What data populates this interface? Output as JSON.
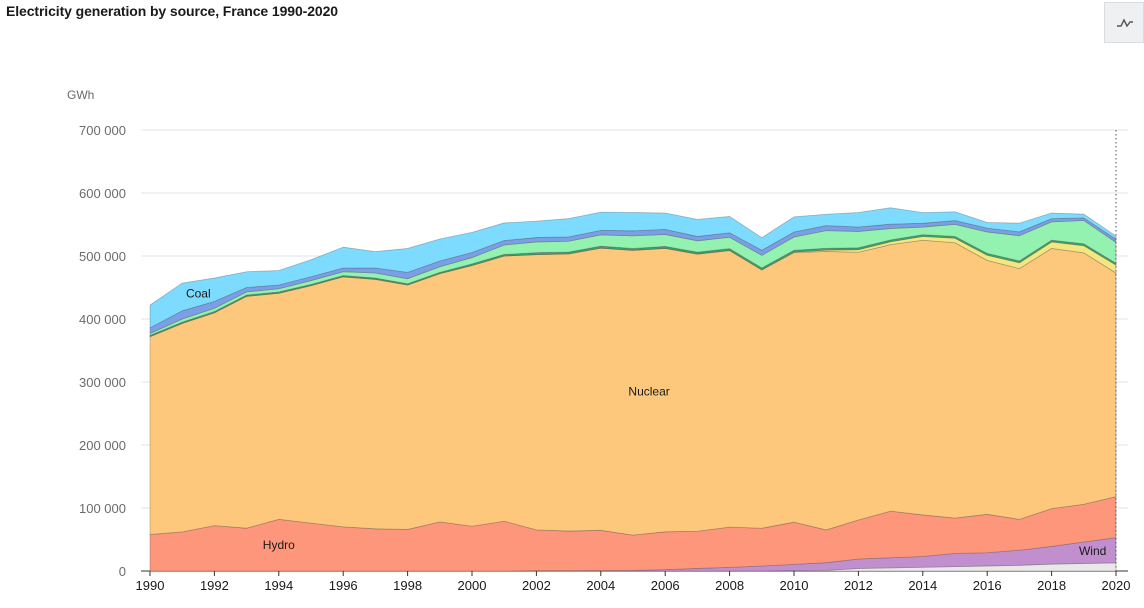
{
  "page": {
    "title": "Electricity generation by source, France 1990-2020"
  },
  "toggle_icon": "line-chart-icon",
  "chart_data": {
    "type": "area",
    "stacked": true,
    "title": "Electricity generation by source, France 1990-2020",
    "ylabel": "GWh",
    "ylim": [
      0,
      700000
    ],
    "yticks": [
      0,
      100000,
      200000,
      300000,
      400000,
      500000,
      600000,
      700000
    ],
    "ytick_labels": [
      "0",
      "100 000",
      "200 000",
      "300 000",
      "400 000",
      "500 000",
      "600 000",
      "700 000"
    ],
    "xlim": [
      1990,
      2020
    ],
    "xticks": [
      1990,
      1992,
      1994,
      1996,
      1998,
      2000,
      2002,
      2004,
      2006,
      2008,
      2010,
      2012,
      2014,
      2016,
      2018,
      2020
    ],
    "xtick_labels": [
      "1990",
      "1992",
      "1994",
      "1996",
      "1998",
      "2000",
      "2002",
      "2004",
      "2006",
      "2008",
      "2010",
      "2012",
      "2014",
      "2016",
      "2018",
      "2020"
    ],
    "grid": true,
    "x": [
      1990,
      1991,
      1992,
      1993,
      1994,
      1995,
      1996,
      1997,
      1998,
      1999,
      2000,
      2001,
      2002,
      2003,
      2004,
      2005,
      2006,
      2007,
      2008,
      2009,
      2010,
      2011,
      2012,
      2013,
      2014,
      2015,
      2016,
      2017,
      2018,
      2019,
      2020
    ],
    "series": [
      {
        "key": "s_other",
        "color": "#e8e8e8",
        "values": [
          0,
          0,
          0,
          0,
          0,
          0,
          0,
          0,
          0,
          0,
          0,
          0,
          0,
          0,
          0,
          0,
          0,
          0,
          0,
          0,
          500,
          1000,
          4000,
          5000,
          6000,
          7000,
          8000,
          9000,
          11000,
          12000,
          13000
        ]
      },
      {
        "name": "Wind",
        "color": "#c18fce",
        "values": [
          0,
          0,
          0,
          0,
          0,
          0,
          0,
          0,
          0,
          0,
          0,
          0,
          300,
          400,
          600,
          1000,
          2200,
          4100,
          5700,
          7900,
          10000,
          12200,
          15000,
          16000,
          17000,
          21000,
          21000,
          24000,
          28000,
          34000,
          40000
        ]
      },
      {
        "name": "Hydro",
        "color": "#fd967a",
        "values": [
          58000,
          62000,
          72000,
          68000,
          82000,
          76000,
          70000,
          67000,
          66000,
          78000,
          71000,
          79000,
          65000,
          63000,
          64000,
          56000,
          60000,
          59000,
          64000,
          60000,
          67000,
          52000,
          62000,
          74000,
          66000,
          56000,
          61000,
          49000,
          60000,
          60000,
          65000
        ]
      },
      {
        "name": "Nuclear",
        "color": "#fdc87c",
        "values": [
          314000,
          331000,
          338000,
          368000,
          359000,
          377000,
          397000,
          396000,
          388000,
          394000,
          414000,
          421000,
          437000,
          440000,
          448000,
          452000,
          450000,
          440000,
          439000,
          410000,
          428000,
          442000,
          425000,
          423000,
          436000,
          437000,
          403000,
          398000,
          413000,
          399000,
          355000
        ]
      },
      {
        "key": "s_solar",
        "color": "#f5e67f",
        "values": [
          0,
          0,
          0,
          0,
          0,
          0,
          0,
          0,
          0,
          0,
          0,
          0,
          0,
          0,
          0,
          0,
          0,
          0,
          100,
          200,
          600,
          2100,
          4000,
          4600,
          5900,
          7200,
          8200,
          9200,
          10200,
          11400,
          12600
        ]
      },
      {
        "key": "s_bio",
        "color": "#3aa86b",
        "values": [
          2000,
          2000,
          2000,
          2000,
          2000,
          2000,
          2000,
          2000,
          2000,
          2000,
          2500,
          2500,
          3000,
          3000,
          3000,
          3000,
          3000,
          3000,
          3000,
          3000,
          3000,
          3000,
          3000,
          3000,
          3000,
          3000,
          3000,
          3000,
          3000,
          3000,
          3000
        ]
      },
      {
        "key": "s_gas",
        "color": "#94f2b0",
        "values": [
          3000,
          5000,
          5000,
          5000,
          5000,
          6000,
          6000,
          8000,
          8000,
          9000,
          10000,
          15000,
          17000,
          17000,
          18000,
          20000,
          19000,
          18000,
          18000,
          20000,
          21000,
          28000,
          26000,
          18000,
          12000,
          19000,
          34000,
          40000,
          29000,
          37000,
          33000
        ]
      },
      {
        "key": "s_oil",
        "color": "#7b9fe6",
        "values": [
          9000,
          13000,
          11000,
          7000,
          6000,
          6000,
          6000,
          8000,
          10000,
          9000,
          8000,
          7000,
          7000,
          7000,
          7000,
          8000,
          8000,
          7000,
          7000,
          8000,
          8000,
          8000,
          7000,
          7000,
          6000,
          6000,
          6000,
          6000,
          5000,
          4000,
          5000
        ]
      },
      {
        "name": "Coal",
        "color": "#7cdbff",
        "values": [
          36000,
          44000,
          37000,
          25000,
          23000,
          27000,
          33000,
          26000,
          38000,
          35000,
          32000,
          28000,
          26000,
          29000,
          29000,
          29000,
          26000,
          27000,
          26000,
          20000,
          24000,
          18000,
          23000,
          26000,
          17000,
          14000,
          9000,
          14000,
          9000,
          6000,
          5000
        ]
      }
    ],
    "annotations": [
      {
        "text": "Coal",
        "series": "Coal"
      },
      {
        "text": "Nuclear",
        "series": "Nuclear"
      },
      {
        "text": "Hydro",
        "series": "Hydro"
      },
      {
        "text": "Wind",
        "series": "Wind"
      }
    ]
  }
}
